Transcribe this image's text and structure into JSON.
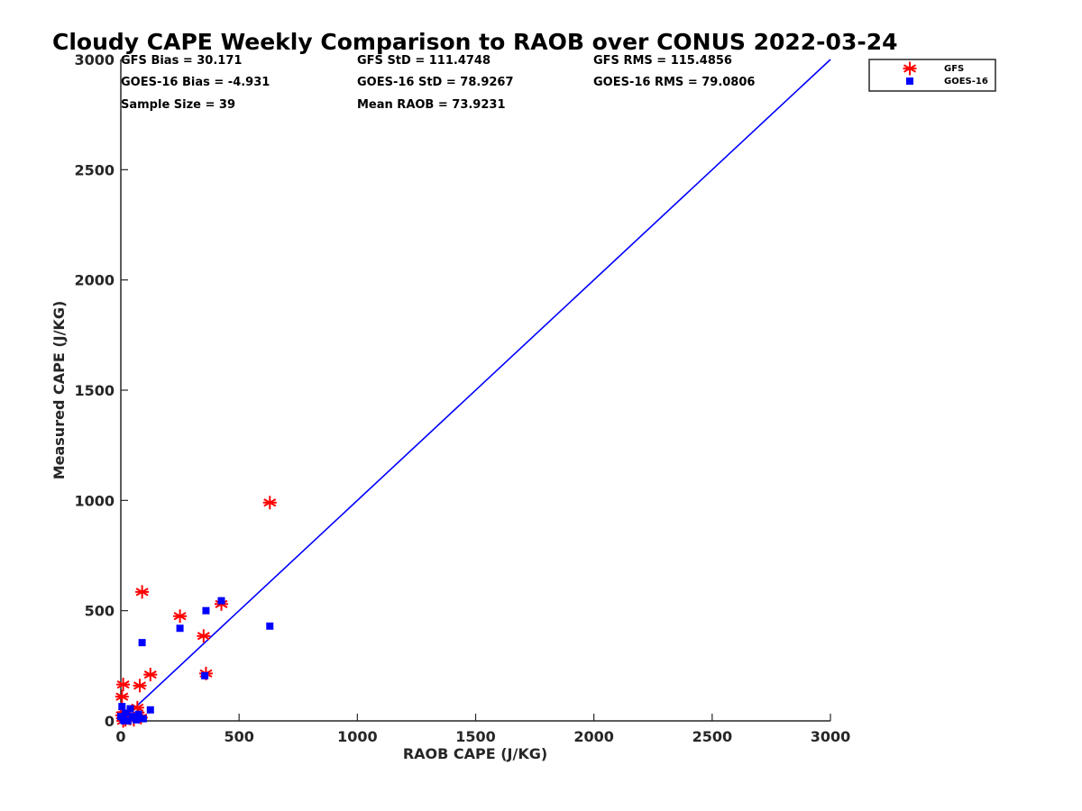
{
  "chart_data": {
    "type": "scatter",
    "title": "Cloudy CAPE Weekly Comparison to RAOB over CONUS 2022-03-24",
    "xlabel": "RAOB CAPE (J/KG)",
    "ylabel": "Measured CAPE (J/KG)",
    "xlim": [
      0,
      3000
    ],
    "ylim": [
      0,
      3000
    ],
    "x_ticks": [
      "0",
      "500",
      "1000",
      "1500",
      "2000",
      "2500",
      "3000"
    ],
    "y_ticks": [
      "0",
      "500",
      "1000",
      "1500",
      "2000",
      "2500",
      "3000"
    ],
    "grid": false,
    "legend_position": "top-right",
    "stats": [
      "GFS Bias = 30.171",
      "GFS StD = 111.4748",
      "GFS RMS = 115.4856",
      "GOES-16 Bias = -4.931",
      "GOES-16 StD = 78.9267",
      "GOES-16 RMS = 79.0806",
      "Sample Size = 39",
      "Mean RAOB = 73.9231"
    ],
    "reference_line": {
      "x": [
        0,
        3000
      ],
      "y": [
        0,
        3000
      ],
      "color": "#0000ff"
    },
    "series": [
      {
        "name": "GFS",
        "marker": "asterisk",
        "color": "#ff0000",
        "points": [
          [
            90,
            585
          ],
          [
            630,
            990
          ],
          [
            250,
            475
          ],
          [
            425,
            530
          ],
          [
            350,
            385
          ],
          [
            360,
            215
          ],
          [
            125,
            210
          ],
          [
            80,
            160
          ],
          [
            10,
            165
          ],
          [
            5,
            110
          ],
          [
            70,
            60
          ],
          [
            75,
            25
          ],
          [
            85,
            15
          ],
          [
            40,
            10
          ],
          [
            20,
            5
          ],
          [
            5,
            25
          ],
          [
            15,
            40
          ],
          [
            30,
            15
          ],
          [
            55,
            5
          ],
          [
            10,
            0
          ]
        ]
      },
      {
        "name": "GOES-16",
        "marker": "square",
        "color": "#0000ff",
        "points": [
          [
            630,
            430
          ],
          [
            425,
            545
          ],
          [
            360,
            500
          ],
          [
            250,
            420
          ],
          [
            90,
            355
          ],
          [
            355,
            205
          ],
          [
            125,
            50
          ],
          [
            5,
            65
          ],
          [
            40,
            55
          ],
          [
            75,
            30
          ],
          [
            95,
            10
          ],
          [
            60,
            15
          ],
          [
            20,
            35
          ],
          [
            10,
            5
          ],
          [
            0,
            20
          ],
          [
            30,
            0
          ],
          [
            50,
            20
          ],
          [
            65,
            5
          ],
          [
            15,
            0
          ]
        ]
      }
    ]
  }
}
